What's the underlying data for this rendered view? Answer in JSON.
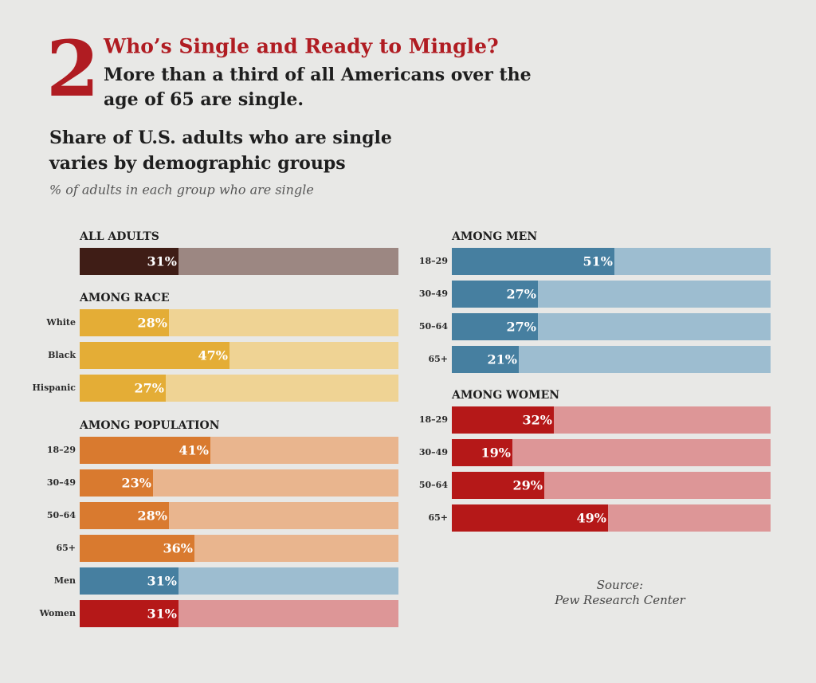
{
  "header": {
    "number": "2",
    "title": "Who’s Single and Ready to Mingle?",
    "subtitle_lines": [
      "More than a third of all Americans over the",
      "age of 65 are single."
    ]
  },
  "heading_lines": [
    "Share of U.S. adults who are single",
    "varies by demographic groups"
  ],
  "note": "% of adults in each group who are single",
  "source_lines": [
    "Source:",
    "Pew Research Center"
  ],
  "chart_data": [
    {
      "type": "bar",
      "orientation": "horizontal",
      "title": "ALL ADULTS",
      "categories": [
        null
      ],
      "values": [
        31
      ],
      "value_labels": [
        "31%"
      ],
      "colors": [
        "#3f1d16"
      ],
      "track_colors": [
        "#9c8782"
      ],
      "xlim": [
        0,
        100
      ]
    },
    {
      "type": "bar",
      "orientation": "horizontal",
      "title": "AMONG RACE",
      "categories": [
        "White",
        "Black",
        "Hispanic"
      ],
      "values": [
        28,
        47,
        27
      ],
      "value_labels": [
        "28%",
        "47%",
        "27%"
      ],
      "colors": [
        "#e4ad36",
        "#e4ad36",
        "#e4ad36"
      ],
      "track_colors": [
        "#efd394",
        "#efd394",
        "#efd394"
      ],
      "xlim": [
        0,
        100
      ]
    },
    {
      "type": "bar",
      "orientation": "horizontal",
      "title": "AMONG POPULATION",
      "categories": [
        "18–29",
        "30–49",
        "50–64",
        "65+",
        "Men",
        "Women"
      ],
      "values": [
        41,
        23,
        28,
        36,
        31,
        31
      ],
      "value_labels": [
        "41%",
        "23%",
        "28%",
        "36%",
        "31%",
        "31%"
      ],
      "colors": [
        "#d97a2f",
        "#d97a2f",
        "#d97a2f",
        "#d97a2f",
        "#467fa0",
        "#b51818"
      ],
      "track_colors": [
        "#e9b58e",
        "#e9b58e",
        "#e9b58e",
        "#e9b58e",
        "#9dbdd0",
        "#dd9697"
      ],
      "xlim": [
        0,
        100
      ]
    },
    {
      "type": "bar",
      "orientation": "horizontal",
      "title": "AMONG MEN",
      "categories": [
        "18–29",
        "30–49",
        "50–64",
        "65+"
      ],
      "values": [
        51,
        27,
        27,
        21
      ],
      "value_labels": [
        "51%",
        "27%",
        "27%",
        "21%"
      ],
      "colors": [
        "#467fa0",
        "#467fa0",
        "#467fa0",
        "#467fa0"
      ],
      "track_colors": [
        "#9dbdd0",
        "#9dbdd0",
        "#9dbdd0",
        "#9dbdd0"
      ],
      "xlim": [
        0,
        100
      ]
    },
    {
      "type": "bar",
      "orientation": "horizontal",
      "title": "AMONG WOMEN",
      "categories": [
        "18–29",
        "30–49",
        "50–64",
        "65+"
      ],
      "values": [
        32,
        19,
        29,
        49
      ],
      "value_labels": [
        "32%",
        "19%",
        "29%",
        "49%"
      ],
      "colors": [
        "#b51818",
        "#b51818",
        "#b51818",
        "#b51818"
      ],
      "track_colors": [
        "#dd9697",
        "#dd9697",
        "#dd9697",
        "#dd9697"
      ],
      "xlim": [
        0,
        100
      ]
    }
  ]
}
